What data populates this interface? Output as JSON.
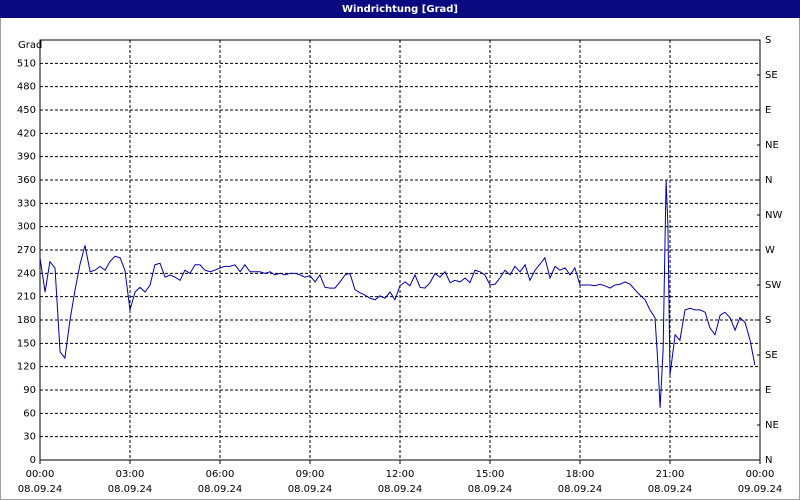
{
  "chart_data": {
    "type": "line",
    "title": "Windrichtung [Grad]",
    "y_label": "Grad",
    "x": [
      0,
      0.17,
      0.33,
      0.5,
      0.67,
      0.83,
      1,
      1.17,
      1.33,
      1.5,
      1.67,
      1.83,
      2,
      2.17,
      2.33,
      2.5,
      2.67,
      2.83,
      3,
      3.17,
      3.33,
      3.5,
      3.67,
      3.83,
      4,
      4.17,
      4.33,
      4.5,
      4.67,
      4.83,
      5,
      5.17,
      5.33,
      5.5,
      5.67,
      5.83,
      6,
      6.17,
      6.33,
      6.5,
      6.67,
      6.83,
      7,
      7.17,
      7.33,
      7.5,
      7.67,
      7.83,
      8,
      8.17,
      8.33,
      8.5,
      8.67,
      8.83,
      9,
      9.17,
      9.33,
      9.5,
      9.67,
      9.83,
      10,
      10.17,
      10.33,
      10.5,
      10.67,
      10.83,
      11,
      11.17,
      11.33,
      11.5,
      11.67,
      11.83,
      12,
      12.17,
      12.33,
      12.5,
      12.67,
      12.83,
      13,
      13.17,
      13.33,
      13.5,
      13.67,
      13.83,
      14,
      14.17,
      14.33,
      14.5,
      14.67,
      14.83,
      15,
      15.17,
      15.33,
      15.5,
      15.67,
      15.83,
      16,
      16.17,
      16.33,
      16.5,
      16.67,
      16.83,
      17,
      17.17,
      17.33,
      17.5,
      17.67,
      17.83,
      18,
      18.17,
      18.33,
      18.5,
      18.67,
      18.83,
      19,
      19.17,
      19.33,
      19.5,
      19.67,
      19.83,
      20,
      20.17,
      20.33,
      20.5,
      20.6,
      20.67,
      20.77,
      20.87,
      20.93,
      21,
      21.17,
      21.33,
      21.5,
      21.67,
      21.83,
      22,
      22.17,
      22.33,
      22.5,
      22.67,
      22.83,
      23,
      23.17,
      23.33,
      23.5,
      23.67,
      23.83
    ],
    "series": [
      {
        "color": "#0000a8",
        "values": [
          260,
          216,
          255,
          247,
          139,
          131,
          180,
          219,
          251,
          276,
          242,
          244,
          249,
          244,
          255,
          262,
          260,
          244,
          193,
          216,
          222,
          216,
          225,
          251,
          253,
          235,
          238,
          235,
          231,
          244,
          240,
          251,
          251,
          244,
          242,
          244,
          247,
          249,
          249,
          251,
          242,
          251,
          242,
          242,
          242,
          240,
          242,
          238,
          240,
          238,
          240,
          240,
          238,
          235,
          237,
          229,
          238,
          222,
          221,
          221,
          229,
          238,
          240,
          219,
          215,
          212,
          208,
          206,
          211,
          208,
          216,
          206,
          224,
          229,
          224,
          238,
          222,
          221,
          228,
          240,
          235,
          242,
          228,
          231,
          229,
          234,
          228,
          244,
          242,
          238,
          225,
          226,
          234,
          244,
          238,
          249,
          242,
          251,
          231,
          244,
          252,
          260,
          234,
          249,
          244,
          247,
          238,
          247,
          225,
          225,
          225,
          224,
          226,
          224,
          221,
          225,
          226,
          229,
          226,
          219,
          212,
          206,
          193,
          183,
          122,
          67,
          141,
          360,
          302,
          109,
          161,
          154,
          193,
          195,
          193,
          193,
          190,
          170,
          161,
          186,
          190,
          183,
          167,
          183,
          177,
          154,
          122
        ]
      }
    ],
    "xlim": [
      0,
      24
    ],
    "xticks": [
      {
        "value": 0,
        "label": "00:00",
        "date": "08.09.24"
      },
      {
        "value": 3,
        "label": "03:00",
        "date": "08.09.24"
      },
      {
        "value": 6,
        "label": "06:00",
        "date": "08.09.24"
      },
      {
        "value": 9,
        "label": "09:00",
        "date": "08.09.24"
      },
      {
        "value": 12,
        "label": "12:00",
        "date": "08.09.24"
      },
      {
        "value": 15,
        "label": "15:00",
        "date": "08.09.24"
      },
      {
        "value": 18,
        "label": "18:00",
        "date": "08.09.24"
      },
      {
        "value": 21,
        "label": "21:00",
        "date": "08.09.24"
      },
      {
        "value": 24,
        "label": "00:00",
        "date": "09.09.24"
      }
    ],
    "ylim": [
      0,
      540
    ],
    "yticks": [
      0,
      30,
      60,
      90,
      120,
      150,
      180,
      210,
      240,
      270,
      300,
      330,
      360,
      390,
      420,
      450,
      480,
      510
    ],
    "y2lim": [
      0,
      540
    ],
    "y2ticks": [
      {
        "value": 0,
        "label": "N"
      },
      {
        "value": 45,
        "label": "NE"
      },
      {
        "value": 90,
        "label": "E"
      },
      {
        "value": 135,
        "label": "SE"
      },
      {
        "value": 180,
        "label": "S"
      },
      {
        "value": 225,
        "label": "SW"
      },
      {
        "value": 270,
        "label": "W"
      },
      {
        "value": 315,
        "label": "NW"
      },
      {
        "value": 360,
        "label": "N"
      },
      {
        "value": 405,
        "label": "NE"
      },
      {
        "value": 450,
        "label": "E"
      },
      {
        "value": 495,
        "label": "SE"
      },
      {
        "value": 540,
        "label": "S"
      }
    ],
    "grid": true
  }
}
